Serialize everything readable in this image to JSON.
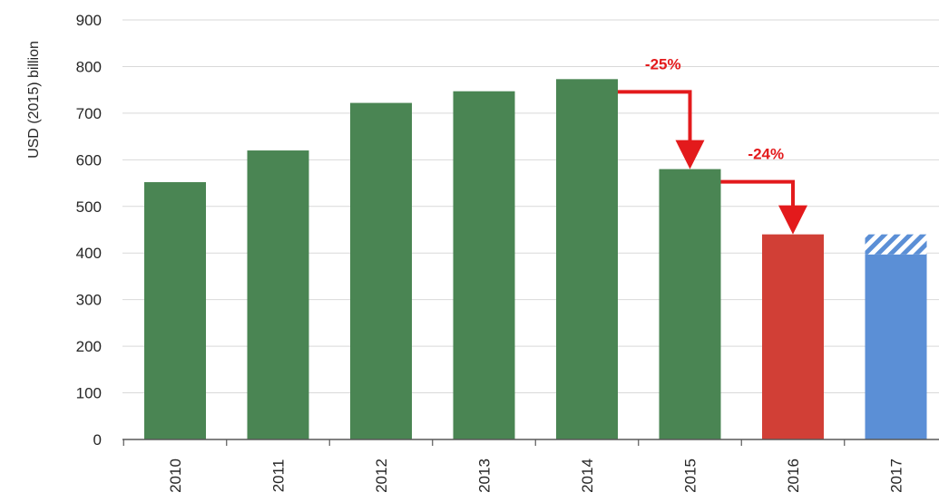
{
  "chart_data": {
    "type": "bar",
    "title": "",
    "xlabel": "",
    "ylabel": "USD (2015) billion",
    "ylim": [
      0,
      900
    ],
    "yticks": [
      0,
      100,
      200,
      300,
      400,
      500,
      600,
      700,
      800,
      900
    ],
    "grid": true,
    "categories": [
      "2010",
      "2011",
      "2012",
      "2013",
      "2014",
      "2015",
      "2016",
      "2017"
    ],
    "values": [
      552,
      620,
      722,
      747,
      773,
      580,
      440,
      440
    ],
    "bar_colors": [
      "#4a8553",
      "#4a8553",
      "#4a8553",
      "#4a8553",
      "#4a8553",
      "#4a8553",
      "#d13f36",
      "#5b8fd6"
    ],
    "hatched_portion": {
      "category": "2017",
      "from": 397,
      "to": 440,
      "color": "#5b8fd6"
    },
    "annotations": [
      {
        "text": "-25%",
        "from": "2014",
        "to": "2015",
        "color": "#e31a1c"
      },
      {
        "text": "-24%",
        "from": "2015",
        "to": "2016",
        "color": "#e31a1c"
      }
    ]
  }
}
